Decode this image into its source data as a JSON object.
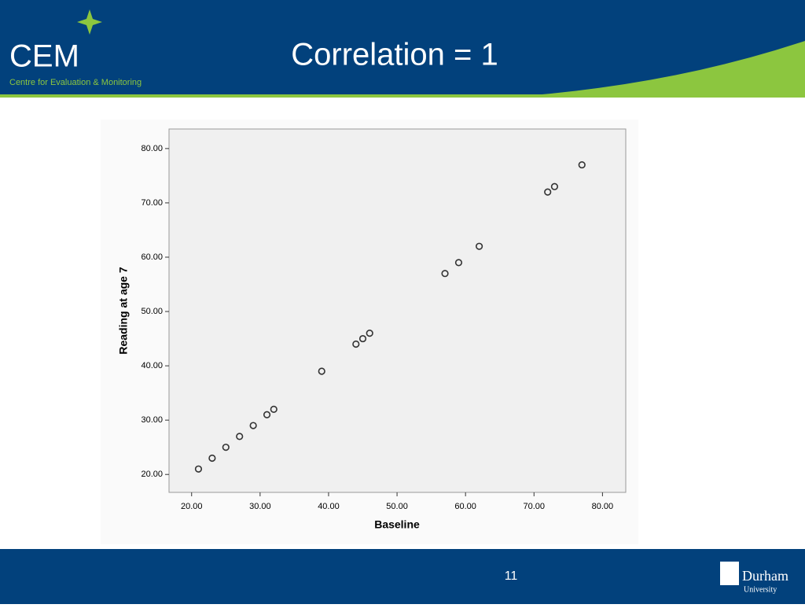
{
  "slide": {
    "title": "Correlation = 1",
    "logo_text": "CEM",
    "logo_subtitle": "Centre for Evaluation & Monitoring",
    "slide_number": "11",
    "footer_logo": "Durham",
    "footer_logo_sub": "University"
  },
  "chart_data": {
    "type": "scatter",
    "x_label": "Baseline",
    "y_label": "Reading at age 7",
    "x": [
      21,
      23,
      25,
      27,
      29,
      31,
      32,
      39,
      44,
      45,
      46,
      57,
      59,
      62,
      72,
      73,
      77
    ],
    "values": [
      21,
      23,
      25,
      27,
      29,
      31,
      32,
      39,
      44,
      45,
      46,
      57,
      59,
      62,
      72,
      73,
      77
    ],
    "color": "#333333",
    "xlim": [
      16.7,
      83.4
    ],
    "ylim": [
      16.7,
      83.6
    ],
    "xticks": [
      {
        "value": 20,
        "label": "20.00"
      },
      {
        "value": 30,
        "label": "30.00"
      },
      {
        "value": 40,
        "label": "40.00"
      },
      {
        "value": 50,
        "label": "50.00"
      },
      {
        "value": 60,
        "label": "60.00"
      },
      {
        "value": 70,
        "label": "70.00"
      },
      {
        "value": 80,
        "label": "80.00"
      }
    ],
    "yticks": [
      {
        "value": 20,
        "label": "20.00"
      },
      {
        "value": 30,
        "label": "30.00"
      },
      {
        "value": 40,
        "label": "40.00"
      },
      {
        "value": 50,
        "label": "50.00"
      },
      {
        "value": 60,
        "label": "60.00"
      },
      {
        "value": 70,
        "label": "70.00"
      },
      {
        "value": 80,
        "label": "80.00"
      }
    ]
  }
}
